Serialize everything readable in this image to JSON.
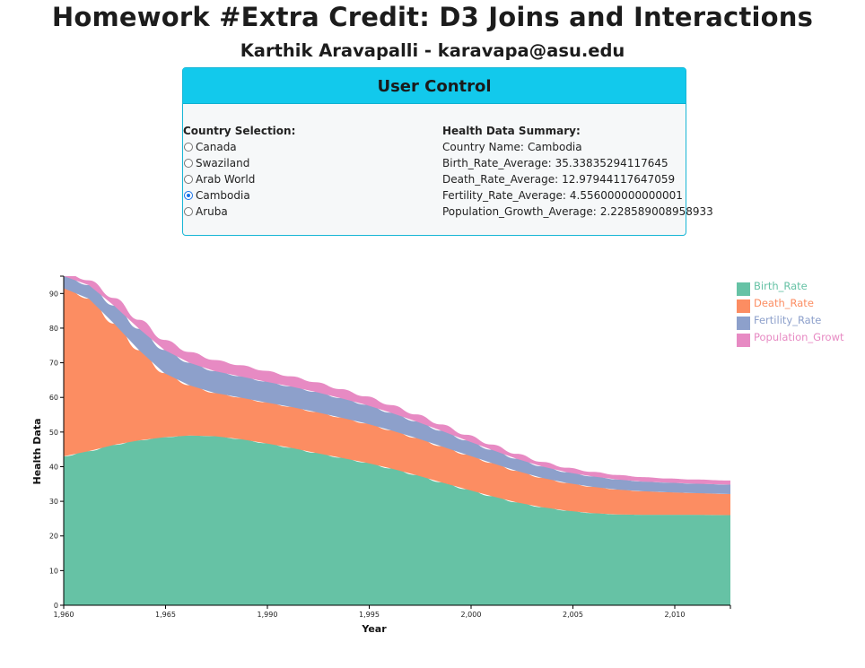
{
  "header": {
    "title": "Homework #Extra Credit: D3 Joins and Interactions",
    "subtitle": "Karthik Aravapalli - karavapa@asu.edu"
  },
  "control": {
    "title": "User Control",
    "country_heading": "Country Selection:",
    "countries": [
      {
        "label": "Canada",
        "checked": false
      },
      {
        "label": "Swaziland",
        "checked": false
      },
      {
        "label": "Arab World",
        "checked": false
      },
      {
        "label": "Cambodia",
        "checked": true
      },
      {
        "label": "Aruba",
        "checked": false
      }
    ],
    "summary_heading": "Health Data Summary:",
    "summary": [
      {
        "label": "Country Name:",
        "value": "Cambodia"
      },
      {
        "label": "Birth_Rate_Average:",
        "value": "35.33835294117645"
      },
      {
        "label": "Death_Rate_Average:",
        "value": "12.97944117647059"
      },
      {
        "label": "Fertility_Rate_Average:",
        "value": "4.556000000000001"
      },
      {
        "label": "Population_Growth_Average:",
        "value": "2.228589008958933"
      }
    ]
  },
  "chart_data": {
    "type": "area",
    "stacked": true,
    "xlabel": "Year",
    "ylabel": "Health Data",
    "xlim": [
      1960,
      2013
    ],
    "ylim": [
      0,
      95
    ],
    "x_ticks": [
      "1,960",
      "1,965",
      "1,990",
      "1,995",
      "2,000",
      "2,005",
      "2,010"
    ],
    "y_ticks": [
      0,
      10,
      20,
      30,
      40,
      50,
      60,
      70,
      80,
      90
    ],
    "x": [
      1960,
      1962,
      1964,
      1966,
      1968,
      1970,
      1972,
      1974,
      1976,
      1978,
      1980,
      1982,
      1984,
      1986,
      1988,
      1990,
      1992,
      1994,
      1996,
      1998,
      2000,
      2002,
      2004,
      2006,
      2008,
      2010,
      2013
    ],
    "series": [
      {
        "name": "Birth_Rate",
        "color": "#66c2a5",
        "values": [
          43,
          44.5,
          46.3,
          47.6,
          48.5,
          49,
          48.8,
          48,
          46.8,
          45.5,
          44,
          42.6,
          41.2,
          39.5,
          37.6,
          35.5,
          33.5,
          31.5,
          29.7,
          28.3,
          27.3,
          26.6,
          26.2,
          26.1,
          26.1,
          26.1,
          26
        ]
      },
      {
        "name": "Death_Rate",
        "color": "#fc8d62",
        "values": [
          48.5,
          44,
          35,
          26,
          18.5,
          14.5,
          12.5,
          12,
          11.8,
          11.8,
          11.8,
          11.6,
          11.3,
          11,
          10.7,
          10.4,
          10,
          9.6,
          9.1,
          8.5,
          8,
          7.6,
          7.2,
          6.8,
          6.5,
          6.3,
          6.1
        ]
      },
      {
        "name": "Fertility_Rate",
        "color": "#8da0cb",
        "values": [
          3.5,
          3.9,
          5.2,
          6.2,
          6.7,
          6.5,
          6.3,
          6.1,
          6,
          5.9,
          5.8,
          5.6,
          5.4,
          5.1,
          4.8,
          4.5,
          4.1,
          3.8,
          3.5,
          3.3,
          3.1,
          3,
          2.9,
          2.8,
          2.8,
          2.7,
          2.7
        ]
      },
      {
        "name": "Population_Growt",
        "color": "#e78ac3",
        "values": [
          1,
          1.4,
          2.2,
          2.6,
          2.9,
          3.1,
          3.2,
          3.2,
          3.1,
          2.9,
          2.8,
          2.6,
          2.4,
          2.2,
          2,
          1.8,
          1.6,
          1.5,
          1.4,
          1.3,
          1.3,
          1.3,
          1.3,
          1.3,
          1.2,
          1.2,
          1.2
        ]
      }
    ],
    "legend_position": "top-right",
    "grid": false
  }
}
